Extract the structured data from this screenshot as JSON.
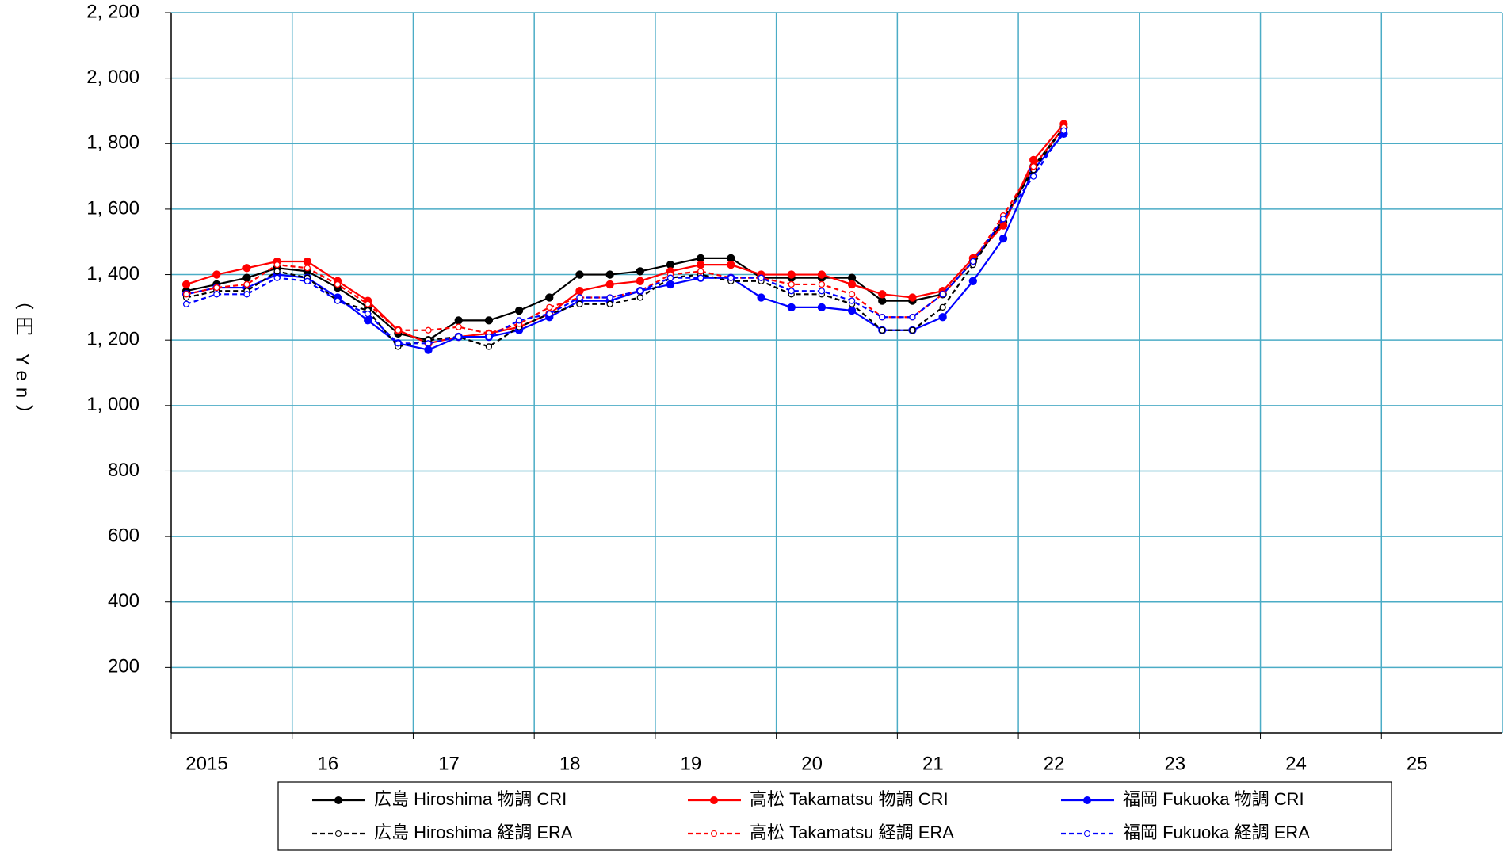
{
  "chart_data": {
    "type": "line",
    "y_label": "（円 Yen）",
    "x": [
      2015.125,
      2015.375,
      2015.625,
      2015.875,
      2016.125,
      2016.375,
      2016.625,
      2016.875,
      2017.125,
      2017.375,
      2017.625,
      2017.875,
      2018.125,
      2018.375,
      2018.625,
      2018.875,
      2019.125,
      2019.375,
      2019.625,
      2019.875,
      2020.125,
      2020.375,
      2020.625,
      2020.875,
      2021.125,
      2021.375,
      2021.625,
      2021.875,
      2022.125,
      2022.375
    ],
    "xlim": [
      2015,
      2026
    ],
    "xticks": [
      2015,
      {
        "value": 2016,
        "label": "16"
      },
      {
        "value": 2017,
        "label": "17"
      },
      {
        "value": 2018,
        "label": "18"
      },
      {
        "value": 2019,
        "label": "19"
      },
      {
        "value": 2020,
        "label": "20"
      },
      {
        "value": 2021,
        "label": "21"
      },
      {
        "value": 2022,
        "label": "22"
      },
      {
        "value": 2023,
        "label": "23"
      },
      {
        "value": 2024,
        "label": "24"
      },
      {
        "value": 2025,
        "label": "25"
      }
    ],
    "ylim": [
      0,
      2200
    ],
    "yticks": [
      200,
      400,
      600,
      800,
      {
        "value": 1000,
        "label": "1, 000"
      },
      {
        "value": 1200,
        "label": "1, 200"
      },
      {
        "value": 1400,
        "label": "1, 400"
      },
      {
        "value": 1600,
        "label": "1, 600"
      },
      {
        "value": 1800,
        "label": "1, 800"
      },
      {
        "value": 2000,
        "label": "2, 000"
      },
      {
        "value": 2200,
        "label": "2, 200"
      }
    ],
    "grid": true,
    "grid_color": "#4bacc6",
    "legend": "bottom",
    "series": [
      {
        "name": "広島 Hiroshima 物調 CRI",
        "color": "#000000",
        "line_style": "solid",
        "marker": "filled",
        "values": [
          1350,
          1370,
          1390,
          1420,
          1410,
          1360,
          1300,
          1220,
          1200,
          1260,
          1260,
          1290,
          1330,
          1400,
          1400,
          1410,
          1430,
          1450,
          1450,
          1390,
          1390,
          1390,
          1390,
          1320,
          1320,
          1340,
          1440,
          1560,
          1730,
          1850
        ]
      },
      {
        "name": "高松 Takamatsu 物調 CRI",
        "color": "#ff0000",
        "line_style": "solid",
        "marker": "filled",
        "values": [
          1370,
          1400,
          1420,
          1440,
          1440,
          1380,
          1320,
          1230,
          1190,
          1210,
          1220,
          1240,
          1280,
          1350,
          1370,
          1380,
          1410,
          1430,
          1430,
          1400,
          1400,
          1400,
          1370,
          1340,
          1330,
          1350,
          1450,
          1550,
          1750,
          1860
        ]
      },
      {
        "name": "福岡 Fukuoka  物調 CRI",
        "color": "#0000ff",
        "line_style": "solid",
        "marker": "filled",
        "values": [
          1340,
          1360,
          1360,
          1400,
          1390,
          1330,
          1260,
          1190,
          1170,
          1210,
          1210,
          1230,
          1270,
          1320,
          1320,
          1350,
          1370,
          1390,
          1390,
          1330,
          1300,
          1300,
          1290,
          1230,
          1230,
          1270,
          1380,
          1510,
          1720,
          1830
        ]
      },
      {
        "name": "広島 Hiroshima 経調 ERA",
        "color": "#000000",
        "line_style": "dashed",
        "marker": "open",
        "values": [
          1330,
          1350,
          1350,
          1410,
          1390,
          1320,
          1290,
          1180,
          1200,
          1210,
          1180,
          1240,
          1280,
          1310,
          1310,
          1330,
          1390,
          1400,
          1380,
          1380,
          1340,
          1340,
          1310,
          1230,
          1230,
          1300,
          1430,
          1570,
          1720,
          1850
        ]
      },
      {
        "name": "高松 Takamatsu 経調 ERA",
        "color": "#ff0000",
        "line_style": "dashed",
        "marker": "open",
        "values": [
          1340,
          1360,
          1370,
          1430,
          1420,
          1370,
          1310,
          1230,
          1230,
          1240,
          1220,
          1250,
          1300,
          1330,
          1330,
          1350,
          1400,
          1410,
          1390,
          1390,
          1370,
          1370,
          1340,
          1270,
          1270,
          1340,
          1440,
          1580,
          1730,
          1850
        ]
      },
      {
        "name": "福岡 Fukuoka  経調 ERA",
        "color": "#0000ff",
        "line_style": "dashed",
        "marker": "open",
        "values": [
          1310,
          1340,
          1340,
          1390,
          1380,
          1320,
          1280,
          1190,
          1190,
          1210,
          1210,
          1260,
          1280,
          1330,
          1330,
          1350,
          1390,
          1390,
          1390,
          1390,
          1350,
          1350,
          1320,
          1270,
          1270,
          1340,
          1440,
          1570,
          1700,
          1840
        ]
      }
    ]
  }
}
